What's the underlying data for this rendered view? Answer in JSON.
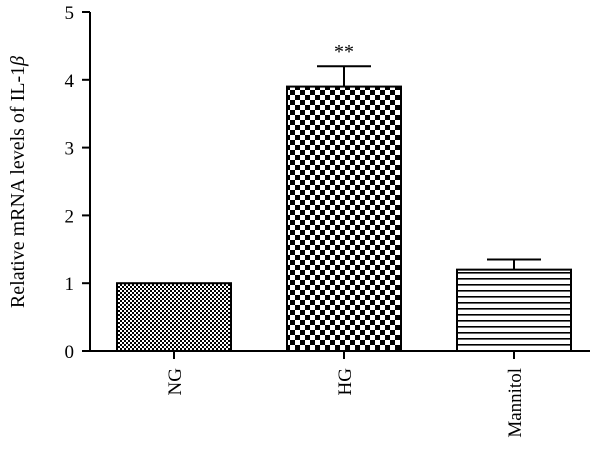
{
  "chart_data": {
    "type": "bar",
    "categories": [
      "NG",
      "HG",
      "Mannitol"
    ],
    "values": [
      1.0,
      3.9,
      1.2
    ],
    "errors": [
      0.0,
      0.3,
      0.15
    ],
    "patterns": [
      "fine-checker",
      "coarse-checker",
      "horizontal-lines"
    ],
    "annotations": [
      "",
      "**",
      ""
    ],
    "ylabel_text": "Relative mRNA levels of IL-1",
    "ylabel_symbol": "β",
    "ylim": [
      0,
      5
    ],
    "yticks": [
      "0",
      "1",
      "2",
      "3",
      "4",
      "5"
    ],
    "grid": false,
    "legend": "none",
    "colors": {
      "bar_fill": "#000000",
      "bar_background": "#ffffff"
    }
  }
}
